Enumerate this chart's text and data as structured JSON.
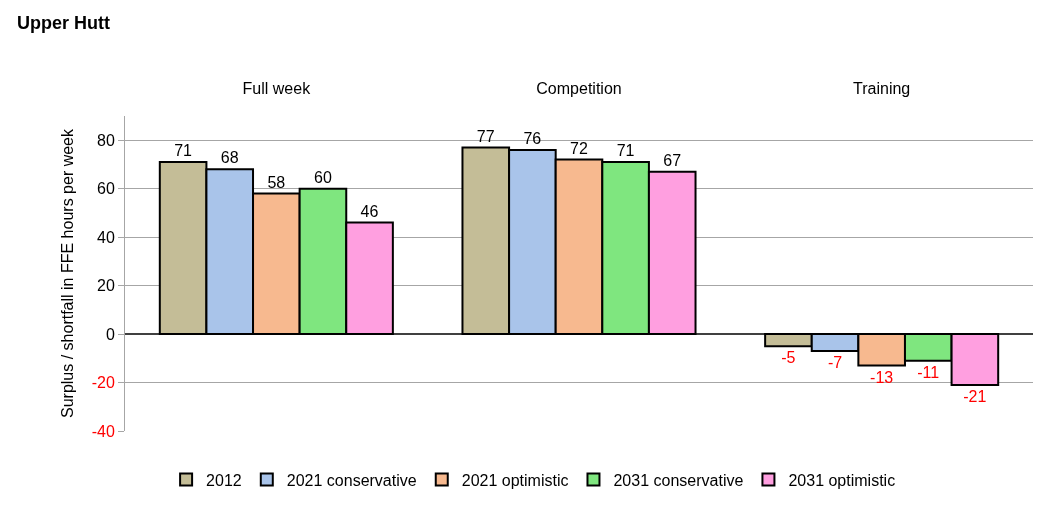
{
  "chart_data": {
    "type": "bar",
    "title": "Upper Hutt",
    "ylabel": "Surplus / shortfall in FFE hours per week",
    "categories": [
      "Full week",
      "Competition",
      "Training"
    ],
    "series": [
      {
        "name": "2012",
        "color": "#c4bd97",
        "values": [
          71,
          77,
          -5
        ]
      },
      {
        "name": "2021 conservative",
        "color": "#a9c4ea",
        "values": [
          68,
          76,
          -7
        ]
      },
      {
        "name": "2021 optimistic",
        "color": "#f7b98f",
        "values": [
          58,
          72,
          -13
        ]
      },
      {
        "name": "2031 conservative",
        "color": "#7fe67f",
        "values": [
          60,
          71,
          -11
        ]
      },
      {
        "name": "2031 optimistic",
        "color": "#ff9fe0",
        "values": [
          46,
          67,
          -21
        ]
      }
    ],
    "ylim": [
      -40,
      90
    ],
    "yticks": [
      -40,
      -20,
      0,
      20,
      40,
      60,
      80
    ],
    "grid": "y",
    "legend": "bottom",
    "data_labels": true
  }
}
